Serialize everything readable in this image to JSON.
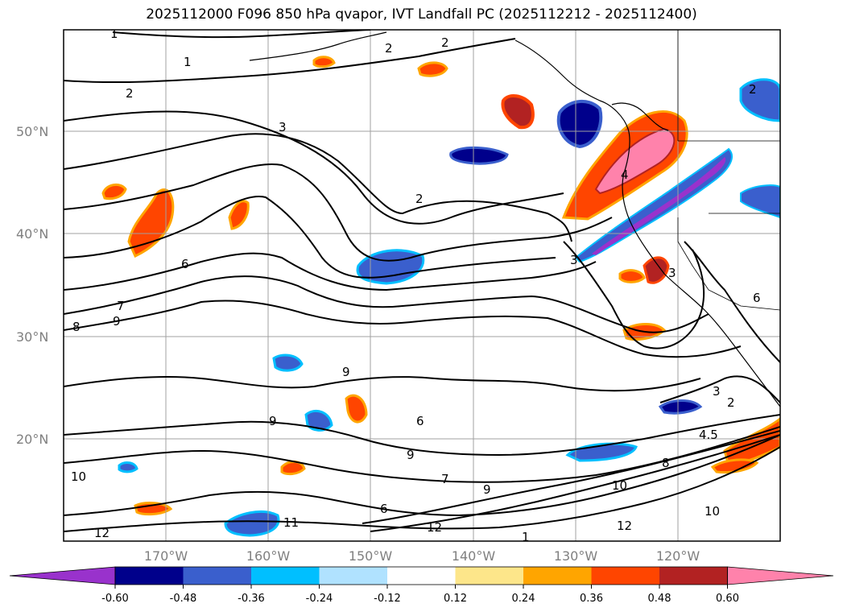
{
  "title": "2025112000 F096 850 hPa qvapor, IVT Landfall PC (2025112212 - 2025112400)",
  "lat_labels": [
    "50°N",
    "40°N",
    "30°N",
    "20°N"
  ],
  "lon_labels": [
    "170°W",
    "160°W",
    "150°W",
    "140°W",
    "130°W",
    "120°W"
  ],
  "colorbar": {
    "colors": [
      "#9932cc",
      "#00008b",
      "#3a5fcd",
      "#00bfff",
      "#b0e2ff",
      "#ffffff",
      "#fde68a",
      "#ffa500",
      "#ff4500",
      "#b22222",
      "#ff82ab"
    ],
    "tick_labels": [
      "-0.60",
      "-0.48",
      "-0.36",
      "-0.24",
      "-0.12",
      "0.12",
      "0.24",
      "0.36",
      "0.48",
      "0.60"
    ],
    "extend": "both"
  },
  "contour_labels": [
    {
      "text": "1"
    },
    {
      "text": "1"
    },
    {
      "text": "2"
    },
    {
      "text": "2"
    },
    {
      "text": "3"
    },
    {
      "text": "2"
    },
    {
      "text": "2"
    },
    {
      "text": "2"
    },
    {
      "text": "6"
    },
    {
      "text": "3"
    },
    {
      "text": "4"
    },
    {
      "text": "3"
    },
    {
      "text": "8"
    },
    {
      "text": "9"
    },
    {
      "text": "7"
    },
    {
      "text": "6"
    },
    {
      "text": "9"
    },
    {
      "text": "6"
    },
    {
      "text": "3"
    },
    {
      "text": "2"
    },
    {
      "text": "4.5"
    },
    {
      "text": "9"
    },
    {
      "text": "10"
    },
    {
      "text": "9"
    },
    {
      "text": "7"
    },
    {
      "text": "9"
    },
    {
      "text": "8"
    },
    {
      "text": "10"
    },
    {
      "text": "6"
    },
    {
      "text": "12"
    },
    {
      "text": "11"
    },
    {
      "text": "12"
    },
    {
      "text": "12"
    },
    {
      "text": "10"
    },
    {
      "text": "1"
    }
  ]
}
